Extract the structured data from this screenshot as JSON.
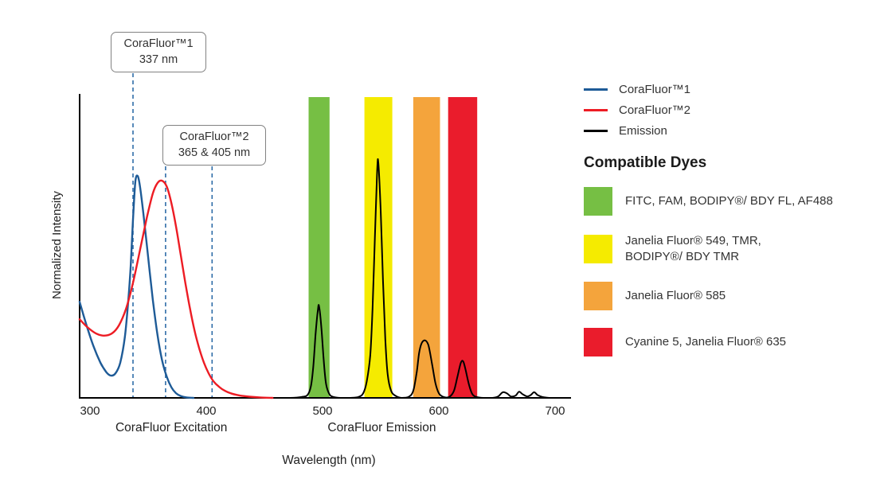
{
  "chart_data": {
    "type": "line",
    "title": "",
    "xlabel": "Wavelength (nm)",
    "ylabel": "Normalized Intensity",
    "x_range": [
      300,
      700
    ],
    "y_range": [
      0,
      1
    ],
    "grid": false,
    "legend_position": "right",
    "x_ticks": [
      300,
      400,
      500,
      600,
      700
    ],
    "section_labels": [
      {
        "text": "CoraFluor Excitation",
        "center_nm": 370
      },
      {
        "text": "CoraFluor Emission",
        "center_nm": 551
      }
    ],
    "callouts": [
      {
        "title": "CoraFluor™1",
        "value": "337 nm"
      },
      {
        "title": "CoraFluor™2",
        "value": "365 & 405 nm"
      }
    ],
    "dashed_line_color": "#2f6da8",
    "dashed_lines_nm": [
      337,
      365,
      405
    ],
    "filter_bands": [
      {
        "name": "green",
        "color": "#76bf44",
        "range_nm": [
          488,
          506
        ]
      },
      {
        "name": "yellow",
        "color": "#f5eb00",
        "range_nm": [
          536,
          560
        ]
      },
      {
        "name": "orange",
        "color": "#f4a43c",
        "range_nm": [
          578,
          601
        ]
      },
      {
        "name": "red",
        "color": "#ea1c2c",
        "range_nm": [
          608,
          633
        ]
      }
    ],
    "series": [
      {
        "name": "CoraFluor™1",
        "key": "corafluor1-excitation",
        "color": "#1e5b97",
        "width": 2.4,
        "points": [
          [
            291,
            0.41
          ],
          [
            297,
            0.31
          ],
          [
            303,
            0.22
          ],
          [
            309,
            0.15
          ],
          [
            314,
            0.11
          ],
          [
            318,
            0.095
          ],
          [
            322,
            0.105
          ],
          [
            326,
            0.15
          ],
          [
            330,
            0.26
          ],
          [
            333,
            0.42
          ],
          [
            335,
            0.56
          ],
          [
            337,
            0.76
          ],
          [
            339,
            0.92
          ],
          [
            341,
            0.945
          ],
          [
            343,
            0.9
          ],
          [
            346,
            0.78
          ],
          [
            350,
            0.6
          ],
          [
            354,
            0.42
          ],
          [
            358,
            0.27
          ],
          [
            362,
            0.16
          ],
          [
            366,
            0.09
          ],
          [
            370,
            0.045
          ],
          [
            374,
            0.02
          ],
          [
            378,
            0.008
          ],
          [
            383,
            0.002
          ],
          [
            389,
            0
          ]
        ]
      },
      {
        "name": "CoraFluor™2",
        "key": "corafluor2-excitation",
        "color": "#ed1c24",
        "width": 2.4,
        "points": [
          [
            291,
            0.335
          ],
          [
            298,
            0.3
          ],
          [
            305,
            0.275
          ],
          [
            312,
            0.265
          ],
          [
            319,
            0.275
          ],
          [
            325,
            0.31
          ],
          [
            331,
            0.38
          ],
          [
            337,
            0.49
          ],
          [
            343,
            0.63
          ],
          [
            349,
            0.77
          ],
          [
            354,
            0.87
          ],
          [
            358,
            0.915
          ],
          [
            362,
            0.925
          ],
          [
            366,
            0.9
          ],
          [
            370,
            0.83
          ],
          [
            374,
            0.73
          ],
          [
            378,
            0.61
          ],
          [
            382,
            0.49
          ],
          [
            386,
            0.38
          ],
          [
            390,
            0.285
          ],
          [
            394,
            0.21
          ],
          [
            398,
            0.15
          ],
          [
            402,
            0.105
          ],
          [
            406,
            0.072
          ],
          [
            411,
            0.047
          ],
          [
            416,
            0.03
          ],
          [
            422,
            0.018
          ],
          [
            429,
            0.01
          ],
          [
            437,
            0.005
          ],
          [
            446,
            0.002
          ],
          [
            457,
            0
          ]
        ]
      },
      {
        "name": "Emission",
        "key": "emission",
        "color": "#000000",
        "width": 2,
        "points": [
          [
            462,
            0
          ],
          [
            472,
            0
          ],
          [
            482,
            0.004
          ],
          [
            487,
            0.012
          ],
          [
            490,
            0.05
          ],
          [
            492,
            0.13
          ],
          [
            494,
            0.27
          ],
          [
            496,
            0.375
          ],
          [
            497,
            0.39
          ],
          [
            499,
            0.3
          ],
          [
            501,
            0.16
          ],
          [
            503,
            0.06
          ],
          [
            506,
            0.015
          ],
          [
            510,
            0.003
          ],
          [
            516,
            0
          ],
          [
            524,
            0
          ],
          [
            531,
            0.004
          ],
          [
            535,
            0.02
          ],
          [
            538,
            0.07
          ],
          [
            541,
            0.18
          ],
          [
            543,
            0.38
          ],
          [
            545,
            0.68
          ],
          [
            547,
            0.97
          ],
          [
            548,
            1.0
          ],
          [
            550,
            0.8
          ],
          [
            552,
            0.5
          ],
          [
            554,
            0.25
          ],
          [
            556,
            0.1
          ],
          [
            559,
            0.03
          ],
          [
            563,
            0.008
          ],
          [
            568,
            0
          ],
          [
            574,
            0.004
          ],
          [
            578,
            0.03
          ],
          [
            581,
            0.11
          ],
          [
            583,
            0.19
          ],
          [
            585,
            0.23
          ],
          [
            588,
            0.245
          ],
          [
            591,
            0.225
          ],
          [
            594,
            0.15
          ],
          [
            597,
            0.065
          ],
          [
            600,
            0.02
          ],
          [
            604,
            0.004
          ],
          [
            609,
            0.004
          ],
          [
            613,
            0.03
          ],
          [
            616,
            0.09
          ],
          [
            619,
            0.15
          ],
          [
            621,
            0.155
          ],
          [
            623,
            0.12
          ],
          [
            626,
            0.055
          ],
          [
            629,
            0.015
          ],
          [
            633,
            0.003
          ],
          [
            639,
            0
          ],
          [
            646,
            0
          ],
          [
            651,
            0.006
          ],
          [
            655,
            0.024
          ],
          [
            659,
            0.018
          ],
          [
            662,
            0.006
          ],
          [
            666,
            0.01
          ],
          [
            669,
            0.026
          ],
          [
            672,
            0.016
          ],
          [
            676,
            0.006
          ],
          [
            679,
            0.012
          ],
          [
            682,
            0.024
          ],
          [
            685,
            0.012
          ],
          [
            689,
            0.004
          ],
          [
            693,
            0.001
          ],
          [
            697,
            0
          ]
        ]
      }
    ]
  },
  "legend": {
    "entries": [
      {
        "label": "CoraFluor™1",
        "color": "#1e5b97"
      },
      {
        "label": "CoraFluor™2",
        "color": "#ed1c24"
      },
      {
        "label": "Emission",
        "color": "#000000"
      }
    ],
    "compatible_dyes_title": "Compatible Dyes",
    "dyes": [
      {
        "color": "#76bf44",
        "label": "FITC, FAM, BODIPY®/ BDY FL, AF488",
        "label2": ""
      },
      {
        "color": "#f5eb00",
        "label": "Janelia Fluor® 549, TMR,",
        "label2": "BODIPY®/ BDY TMR"
      },
      {
        "color": "#f4a43c",
        "label": "Janelia Fluor® 585",
        "label2": ""
      },
      {
        "color": "#ea1c2c",
        "label": "Cyanine 5, Janelia Fluor® 635",
        "label2": ""
      }
    ]
  }
}
